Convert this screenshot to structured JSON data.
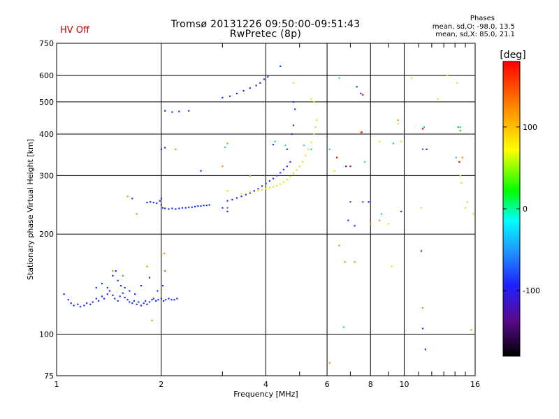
{
  "hv_status": "HV Off",
  "phases": {
    "title": "Phases",
    "line1": "mean, sd,O: -98.0, 13.5",
    "line2": "mean, sd,X:  85.0, 21.1"
  },
  "colors": {
    "hv_status": "#cc0000",
    "grid": "#000000"
  },
  "chart_data": {
    "type": "scatter",
    "title": "Tromsø 20131226 09:50:00-09:51:43",
    "subtitle": "RwPretec (8p)",
    "xlabel": "Frequency [MHz]",
    "ylabel": "Stationary phase Virtual Height [km]",
    "x_scale": "log",
    "y_scale": "log",
    "xlim": [
      1,
      16
    ],
    "ylim": [
      75,
      750
    ],
    "x_ticks": [
      1,
      2,
      4,
      6,
      8,
      10,
      16
    ],
    "x_minor_ticks": [
      3,
      5,
      7,
      9,
      11,
      12,
      13,
      14,
      15
    ],
    "y_ticks": [
      75,
      100,
      200,
      300,
      400,
      500,
      600,
      750
    ],
    "grid": true,
    "colorbar": {
      "label": "[deg]",
      "range": [
        -180,
        180
      ],
      "ticks": [
        100,
        0,
        -100
      ]
    },
    "series": [
      {
        "points": [
          [
            1.05,
            132
          ],
          [
            1.08,
            127
          ],
          [
            1.1,
            124
          ],
          [
            1.12,
            122
          ],
          [
            1.15,
            123
          ],
          [
            1.17,
            121
          ],
          [
            1.2,
            122
          ],
          [
            1.22,
            124
          ],
          [
            1.25,
            123
          ],
          [
            1.27,
            125
          ],
          [
            1.3,
            128
          ],
          [
            1.32,
            126
          ],
          [
            1.35,
            130
          ],
          [
            1.37,
            128
          ],
          [
            1.4,
            132
          ],
          [
            1.42,
            135
          ],
          [
            1.45,
            131
          ],
          [
            1.47,
            128
          ],
          [
            1.5,
            126
          ],
          [
            1.52,
            130
          ],
          [
            1.55,
            133
          ],
          [
            1.57,
            129
          ],
          [
            1.6,
            127
          ],
          [
            1.62,
            125
          ],
          [
            1.65,
            124
          ],
          [
            1.67,
            126
          ],
          [
            1.7,
            123
          ],
          [
            1.72,
            125
          ],
          [
            1.75,
            122
          ],
          [
            1.78,
            124
          ],
          [
            1.8,
            126
          ],
          [
            1.82,
            123
          ],
          [
            1.85,
            125
          ],
          [
            1.88,
            127
          ],
          [
            1.9,
            128
          ],
          [
            1.93,
            126
          ],
          [
            1.96,
            127
          ],
          [
            2.0,
            128
          ],
          [
            2.03,
            126
          ],
          [
            2.06,
            127
          ],
          [
            2.1,
            128
          ],
          [
            2.14,
            127
          ],
          [
            2.18,
            127
          ],
          [
            2.22,
            128
          ],
          [
            1.45,
            150
          ],
          [
            1.48,
            155
          ],
          [
            1.5,
            145
          ],
          [
            1.53,
            140
          ],
          [
            1.57,
            138
          ],
          [
            1.3,
            138
          ],
          [
            1.35,
            142
          ],
          [
            1.4,
            138
          ],
          [
            1.62,
            135
          ],
          [
            1.68,
            132
          ],
          [
            1.75,
            140
          ],
          [
            1.85,
            148
          ],
          [
            1.95,
            135
          ],
          [
            2.02,
            140
          ]
        ],
        "color": "#1a2dff"
      },
      {
        "points": [
          [
            1.82,
            249
          ],
          [
            1.86,
            250
          ],
          [
            1.9,
            249
          ],
          [
            1.94,
            248
          ],
          [
            1.98,
            252
          ],
          [
            2.0,
            245
          ],
          [
            2.02,
            240
          ],
          [
            2.05,
            239
          ],
          [
            2.1,
            238
          ],
          [
            2.15,
            239
          ],
          [
            2.2,
            238
          ],
          [
            2.25,
            239
          ],
          [
            2.3,
            240
          ],
          [
            2.35,
            240
          ],
          [
            2.4,
            241
          ],
          [
            2.45,
            241
          ],
          [
            2.5,
            242
          ],
          [
            2.55,
            243
          ],
          [
            2.6,
            243
          ],
          [
            2.65,
            244
          ],
          [
            2.7,
            244
          ],
          [
            2.75,
            245
          ],
          [
            1.65,
            256
          ],
          [
            2.0,
            256
          ],
          [
            2.05,
            470
          ],
          [
            2.15,
            466
          ],
          [
            2.25,
            468
          ],
          [
            2.4,
            470
          ],
          [
            2.0,
            360
          ],
          [
            2.05,
            364
          ],
          [
            2.6,
            310
          ],
          [
            3.1,
            252
          ],
          [
            3.2,
            254
          ],
          [
            3.3,
            257
          ],
          [
            3.4,
            260
          ],
          [
            3.5,
            263
          ],
          [
            3.6,
            266
          ],
          [
            3.7,
            270
          ],
          [
            3.8,
            274
          ],
          [
            3.9,
            279
          ],
          [
            4.0,
            284
          ],
          [
            4.1,
            289
          ],
          [
            4.2,
            294
          ],
          [
            4.3,
            300
          ],
          [
            4.4,
            306
          ],
          [
            4.5,
            313
          ],
          [
            4.6,
            320
          ],
          [
            4.7,
            330
          ],
          [
            3.0,
            515
          ],
          [
            3.15,
            520
          ],
          [
            3.3,
            530
          ],
          [
            3.45,
            540
          ],
          [
            3.6,
            550
          ],
          [
            3.75,
            560
          ],
          [
            3.85,
            570
          ],
          [
            3.95,
            585
          ],
          [
            4.05,
            595
          ],
          [
            4.4,
            640
          ],
          [
            4.8,
            500
          ],
          [
            4.85,
            475
          ],
          [
            4.8,
            425
          ],
          [
            4.75,
            400
          ],
          [
            4.2,
            372
          ],
          [
            4.6,
            360
          ],
          [
            6.8,
            320
          ],
          [
            6.9,
            220
          ],
          [
            7.2,
            212
          ],
          [
            7.3,
            555
          ],
          [
            7.5,
            530
          ],
          [
            7.9,
            250
          ],
          [
            9.8,
            234
          ],
          [
            11.2,
            178
          ],
          [
            11.3,
            104
          ],
          [
            11.5,
            90
          ],
          [
            11.6,
            360
          ],
          [
            3.0,
            240
          ],
          [
            3.1,
            234
          ]
        ],
        "color": "#1a2dff"
      },
      {
        "points": [
          [
            3.4,
            265
          ],
          [
            3.6,
            268
          ],
          [
            3.8,
            270
          ],
          [
            3.9,
            272
          ],
          [
            4.0,
            274
          ],
          [
            4.1,
            276
          ],
          [
            4.2,
            278
          ],
          [
            4.3,
            280
          ],
          [
            4.4,
            283
          ],
          [
            4.5,
            287
          ],
          [
            4.6,
            292
          ],
          [
            4.7,
            298
          ],
          [
            4.8,
            305
          ],
          [
            4.9,
            312
          ],
          [
            5.0,
            320
          ],
          [
            5.1,
            330
          ],
          [
            5.2,
            345
          ],
          [
            5.3,
            360
          ],
          [
            5.4,
            378
          ],
          [
            5.5,
            400
          ],
          [
            5.55,
            420
          ],
          [
            5.6,
            440
          ],
          [
            5.5,
            500
          ],
          [
            5.4,
            510
          ],
          [
            4.8,
            570
          ],
          [
            8.5,
            380
          ],
          [
            9.0,
            215
          ],
          [
            9.2,
            160
          ],
          [
            9.6,
            430
          ],
          [
            9.8,
            380
          ],
          [
            10.5,
            590
          ],
          [
            11.2,
            240
          ],
          [
            12.5,
            510
          ],
          [
            13.3,
            600
          ],
          [
            14.2,
            570
          ],
          [
            14.4,
            330
          ],
          [
            14.5,
            300
          ],
          [
            14.6,
            285
          ],
          [
            15.0,
            240
          ],
          [
            15.2,
            250
          ],
          [
            15.8,
            230
          ],
          [
            6.3,
            310
          ],
          [
            3.1,
            270
          ]
        ],
        "color": "#e6e600"
      },
      {
        "points": [
          [
            1.45,
            155
          ],
          [
            1.6,
            260
          ],
          [
            1.7,
            230
          ],
          [
            1.82,
            160
          ],
          [
            1.88,
            110
          ],
          [
            2.04,
            175
          ],
          [
            2.2,
            360
          ],
          [
            3.1,
            375
          ],
          [
            3.0,
            320
          ],
          [
            3.6,
            300
          ],
          [
            6.1,
            82
          ],
          [
            6.5,
            185
          ],
          [
            6.75,
            165
          ],
          [
            7.2,
            165
          ],
          [
            7.5,
            405
          ],
          [
            8.0,
            215
          ],
          [
            8.5,
            220
          ],
          [
            9.6,
            440
          ],
          [
            11.3,
            120
          ],
          [
            11.4,
            420
          ],
          [
            14.7,
            340
          ],
          [
            15.6,
            103
          ]
        ],
        "color": "#ff8c00"
      },
      {
        "points": [
          [
            3.05,
            365
          ],
          [
            4.25,
            380
          ],
          [
            4.55,
            370
          ],
          [
            5.15,
            370
          ],
          [
            5.4,
            360
          ],
          [
            6.1,
            360
          ],
          [
            6.5,
            590
          ],
          [
            6.7,
            105
          ],
          [
            7.7,
            330
          ],
          [
            8.6,
            230
          ],
          [
            9.3,
            375
          ],
          [
            11.4,
            420
          ],
          [
            14.5,
            420
          ],
          [
            14.1,
            340
          ]
        ],
        "color": "#1fd1d1"
      },
      {
        "points": [
          [
            1.55,
            150
          ],
          [
            2.05,
            155
          ],
          [
            14.3,
            420
          ],
          [
            14.5,
            410
          ]
        ],
        "color": "#22cc22"
      },
      {
        "points": [
          [
            3.1,
            240
          ],
          [
            7.0,
            250
          ],
          [
            7.6,
            250
          ],
          [
            11.3,
            360
          ],
          [
            4.3,
            300
          ]
        ],
        "color": "#9933cc"
      },
      {
        "points": [
          [
            7.6,
            525
          ],
          [
            7.55,
            405
          ],
          [
            7.0,
            320
          ],
          [
            6.4,
            340
          ],
          [
            11.3,
            415
          ],
          [
            14.4,
            330
          ]
        ],
        "color": "#e60000"
      }
    ]
  }
}
